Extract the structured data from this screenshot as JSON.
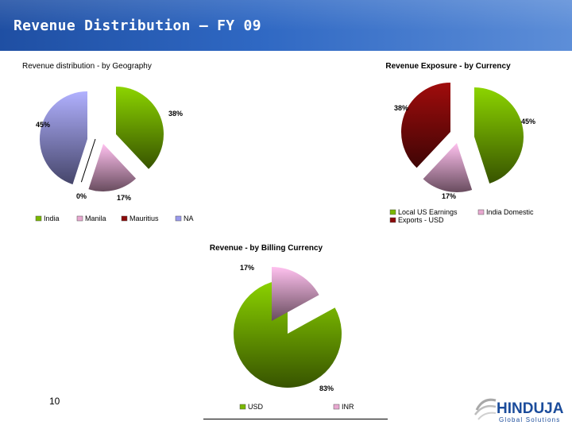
{
  "slide": {
    "title": "Revenue Distribution – FY 09",
    "page_number": "10"
  },
  "logo": {
    "name": "HINDUJA",
    "tagline": "Global Solutions"
  },
  "colors": {
    "header": "#2f68c3",
    "green": "#7ab800",
    "pink": "#e8a8d0",
    "maroon": "#8b0a0a",
    "lavender": "#9a9aec",
    "logo_blue": "#1b4c9b"
  },
  "chart_data": [
    {
      "type": "pie",
      "title": "Revenue distribution - by Geography",
      "series": [
        {
          "name": "India",
          "value": 38,
          "label": "38%",
          "color": "#7ab800"
        },
        {
          "name": "Manila",
          "value": 17,
          "label": "17%",
          "color": "#e8a8d0"
        },
        {
          "name": "Mauritius",
          "value": 0,
          "label": "0%",
          "color": "#8b0a0a"
        },
        {
          "name": "NA",
          "value": 45,
          "label": "45%",
          "color": "#9a9aec"
        }
      ],
      "legend": "bottom"
    },
    {
      "type": "pie",
      "title": "Revenue Exposure - by Currency",
      "series": [
        {
          "name": "Local US Earnings",
          "value": 45,
          "label": "45%",
          "color": "#7ab800"
        },
        {
          "name": "India Domestic",
          "value": 17,
          "label": "17%",
          "color": "#e8a8d0"
        },
        {
          "name": "Exports - USD",
          "value": 38,
          "label": "38%",
          "color": "#8b0a0a"
        }
      ],
      "legend": "bottom"
    },
    {
      "type": "pie",
      "title": "Revenue - by Billing Currency",
      "series": [
        {
          "name": "USD",
          "value": 83,
          "label": "83%",
          "color": "#7ab800"
        },
        {
          "name": "INR",
          "value": 17,
          "label": "17%",
          "color": "#e8a8d0"
        }
      ],
      "legend": "bottom"
    }
  ]
}
